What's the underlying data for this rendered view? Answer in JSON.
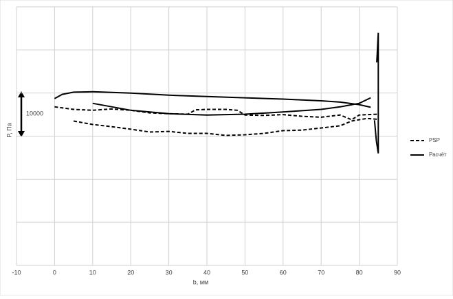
{
  "chart_data": {
    "type": "line",
    "xlabel": "b, мм",
    "ylabel": "P, Па",
    "annotation": "10000",
    "xlim": [
      -10,
      90
    ],
    "xticks": [
      -10,
      0,
      10,
      20,
      30,
      40,
      50,
      60,
      70,
      80,
      90
    ],
    "ylim": [
      -30000,
      30000
    ],
    "yticks": [
      -30000,
      -20000,
      -10000,
      0,
      10000,
      20000,
      30000
    ],
    "ytick_labels": false,
    "grid": true,
    "legend": "right",
    "series": [
      {
        "name": "PSP",
        "color": "#000000",
        "dash": true,
        "x": [
          0,
          5,
          10,
          15,
          20,
          25,
          30,
          35,
          37,
          40,
          45,
          48,
          50,
          55,
          60,
          65,
          70,
          75,
          78,
          80,
          85,
          0,
          5,
          10,
          15,
          20,
          25,
          30,
          35,
          40,
          45,
          50,
          55,
          60,
          65,
          70,
          75,
          78,
          82,
          85
        ],
        "values": [
          6800,
          6200,
          6000,
          6300,
          6000,
          5400,
          5200,
          5100,
          6100,
          6200,
          6200,
          6000,
          4900,
          4800,
          5000,
          4600,
          4400,
          4900,
          3800,
          4900,
          5100,
          null,
          3500,
          2700,
          2200,
          1600,
          950,
          1100,
          630,
          630,
          160,
          320,
          630,
          1270,
          1400,
          1900,
          2400,
          3500,
          4100,
          3900
        ]
      },
      {
        "name": "Расчёт",
        "color": "#000000",
        "dash": false,
        "x": [
          0,
          2,
          5,
          10,
          20,
          30,
          40,
          50,
          60,
          70,
          75,
          80,
          83,
          0,
          10,
          20,
          30,
          40,
          50,
          60,
          70,
          75,
          80,
          83,
          83.8,
          84.6,
          85,
          85,
          84.5,
          84
        ],
        "values": [
          8700,
          9700,
          10200,
          10300,
          10000,
          9500,
          9200,
          8900,
          8600,
          8200,
          7900,
          7300,
          6700,
          null,
          7600,
          6000,
          5200,
          4900,
          5100,
          5600,
          6200,
          6800,
          7600,
          8900,
          null,
          17100,
          24000,
          -4000,
          -1100,
          3700
        ]
      }
    ]
  }
}
